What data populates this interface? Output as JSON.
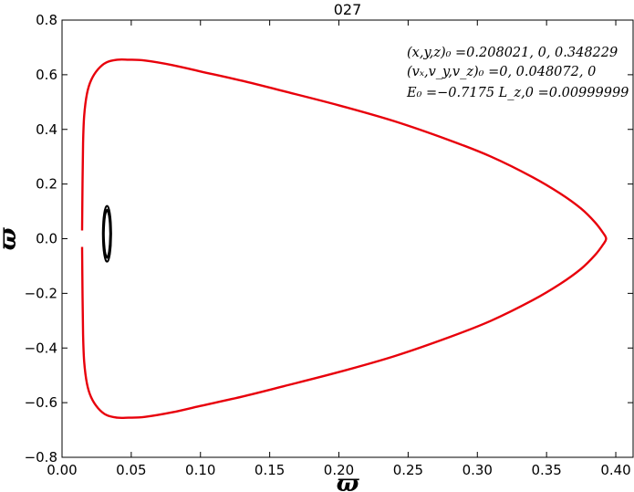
{
  "chart_data": {
    "type": "line",
    "title": "027",
    "xlabel": "ϖ",
    "ylabel": "ϖ̇",
    "xlim": [
      0.0,
      0.4125
    ],
    "ylim": [
      -0.8,
      0.8
    ],
    "x_ticks": [
      0.0,
      0.05,
      0.1,
      0.15,
      0.2,
      0.25,
      0.3,
      0.35,
      0.4
    ],
    "x_tick_labels": [
      "0.00",
      "0.05",
      "0.10",
      "0.15",
      "0.20",
      "0.25",
      "0.30",
      "0.35",
      "0.40"
    ],
    "y_ticks": [
      -0.8,
      -0.6,
      -0.4,
      -0.2,
      0.0,
      0.2,
      0.4,
      0.6,
      0.8
    ],
    "y_tick_labels": [
      "−0.8",
      "−0.6",
      "−0.4",
      "−0.2",
      "0.0",
      "0.2",
      "0.4",
      "0.6",
      "0.8"
    ],
    "grid": false,
    "series": [
      {
        "color": "#e8000b",
        "closed": false,
        "x": [
          0.0145,
          0.0148,
          0.0152,
          0.016,
          0.018,
          0.021,
          0.026,
          0.032,
          0.04,
          0.048,
          0.06,
          0.08,
          0.1,
          0.13,
          0.16,
          0.2,
          0.24,
          0.28,
          0.31,
          0.34,
          0.36,
          0.375,
          0.385,
          0.391,
          0.393,
          0.391,
          0.385,
          0.375,
          0.36,
          0.34,
          0.31,
          0.28,
          0.24,
          0.2,
          0.16,
          0.13,
          0.1,
          0.08,
          0.06,
          0.048,
          0.04,
          0.032,
          0.026,
          0.021,
          0.018,
          0.016,
          0.0152,
          0.0148,
          0.0145
        ],
        "y": [
          -0.03,
          -0.2,
          -0.35,
          -0.45,
          -0.53,
          -0.58,
          -0.62,
          -0.645,
          -0.655,
          -0.655,
          -0.652,
          -0.635,
          -0.612,
          -0.578,
          -0.54,
          -0.488,
          -0.43,
          -0.36,
          -0.3,
          -0.225,
          -0.165,
          -0.11,
          -0.06,
          -0.02,
          0.0,
          0.02,
          0.06,
          0.11,
          0.165,
          0.225,
          0.3,
          0.36,
          0.43,
          0.488,
          0.54,
          0.578,
          0.612,
          0.635,
          0.652,
          0.655,
          0.655,
          0.645,
          0.62,
          0.58,
          0.53,
          0.45,
          0.35,
          0.2,
          0.03
        ]
      },
      {
        "color": "#000000",
        "closed": true,
        "x": [
          0.0355,
          0.0352,
          0.0345,
          0.0335,
          0.0325,
          0.0315,
          0.0305,
          0.0298,
          0.0295,
          0.0298,
          0.0305,
          0.0315,
          0.0325,
          0.0335,
          0.0345,
          0.0352
        ],
        "y": [
          0.018,
          0.062,
          0.094,
          0.114,
          0.12,
          0.114,
          0.094,
          0.062,
          0.018,
          -0.026,
          -0.058,
          -0.078,
          -0.084,
          -0.078,
          -0.058,
          -0.026
        ]
      },
      {
        "color": "#000000",
        "closed": true,
        "x": [
          0.0348,
          0.0345,
          0.0339,
          0.0331,
          0.0325,
          0.0319,
          0.0311,
          0.0305,
          0.0302,
          0.0305,
          0.0311,
          0.0319,
          0.0325,
          0.0331,
          0.0339,
          0.0345
        ],
        "y": [
          0.018,
          0.056,
          0.084,
          0.1,
          0.106,
          0.1,
          0.084,
          0.056,
          0.018,
          -0.02,
          -0.048,
          -0.064,
          -0.07,
          -0.064,
          -0.048,
          -0.02
        ]
      }
    ],
    "annotations": [
      "(x,y,z)₀ =0.208021, 0, 0.348229",
      "(vₓ,v_y,v_z)₀ =0, 0.048072, 0",
      "E₀ =−0.7175  L_z,0 =0.00999999"
    ]
  }
}
